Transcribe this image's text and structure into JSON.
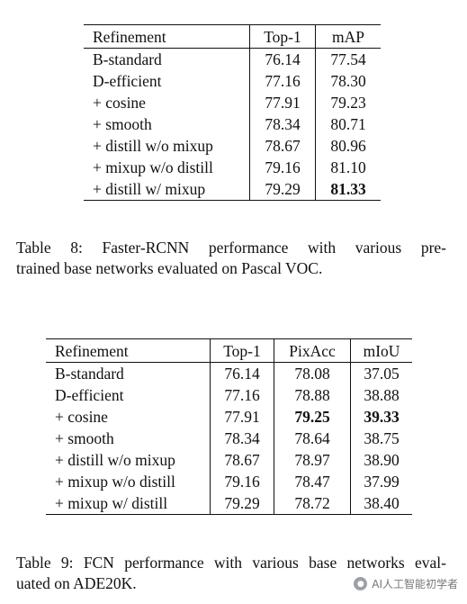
{
  "table8": {
    "headers": [
      "Refinement",
      "Top-1",
      "mAP"
    ],
    "rows": [
      [
        "B-standard",
        "76.14",
        "77.54"
      ],
      [
        "D-efficient",
        "77.16",
        "78.30"
      ],
      [
        "+ cosine",
        "77.91",
        "79.23"
      ],
      [
        "+ smooth",
        "78.34",
        "80.71"
      ],
      [
        "+ distill w/o mixup",
        "78.67",
        "80.96"
      ],
      [
        "+ mixup w/o distill",
        "79.16",
        "81.10"
      ],
      [
        "+ distill w/ mixup",
        "79.29",
        "81.33"
      ]
    ],
    "caption_line1": "Table 8:  Faster-RCNN performance with various pre-",
    "caption_line2": "trained base networks evaluated on Pascal VOC."
  },
  "table9": {
    "headers": [
      "Refinement",
      "Top-1",
      "PixAcc",
      "mIoU"
    ],
    "rows": [
      [
        "B-standard",
        "76.14",
        "78.08",
        "37.05"
      ],
      [
        "D-efficient",
        "77.16",
        "78.88",
        "38.88"
      ],
      [
        "+ cosine",
        "77.91",
        "79.25",
        "39.33"
      ],
      [
        "+ smooth",
        "78.34",
        "78.64",
        "38.75"
      ],
      [
        "+ distill w/o mixup",
        "78.67",
        "78.97",
        "38.90"
      ],
      [
        "+ mixup w/o distill",
        "79.16",
        "78.47",
        "37.99"
      ],
      [
        "+ mixup w/ distill",
        "79.29",
        "78.72",
        "38.40"
      ]
    ],
    "caption_line1": "Table 9: FCN performance with various base networks eval-",
    "caption_line2": "uated on ADE20K."
  },
  "watermark": {
    "icon": "wechat-icon",
    "text": "AI人工智能初学者"
  }
}
